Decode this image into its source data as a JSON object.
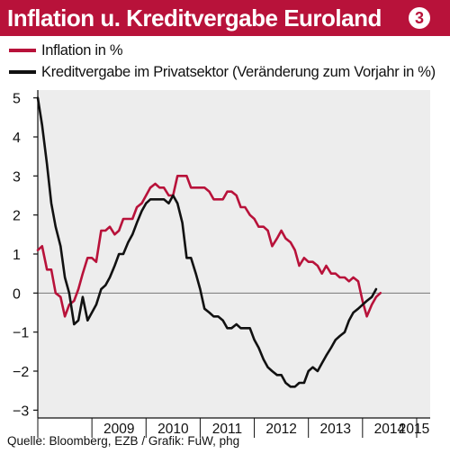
{
  "header": {
    "title": "Inflation u. Kreditvergabe Euroland",
    "badge": "3"
  },
  "legend": [
    {
      "label": "Inflation in %",
      "color": "#b8123a"
    },
    {
      "label": "Kreditvergabe im Privatsektor (Veränderung zum Vorjahr in %)",
      "color": "#111111"
    }
  ],
  "source": "Quelle: Bloomberg, EZB / Grafik: FuW, phg",
  "chart_data": {
    "type": "line",
    "title": "Inflation u. Kreditvergabe Euroland",
    "ylim": [
      -3.2,
      5.2
    ],
    "xlim": [
      2008.0,
      2015.25
    ],
    "y_ticks": [
      5,
      4,
      3,
      2,
      1,
      0,
      -1,
      -2,
      -3
    ],
    "y_tick_labels": [
      "5",
      "4",
      "3",
      "2",
      "1",
      "0",
      "−1",
      "−2",
      "−3"
    ],
    "x_tick_labels": [
      {
        "label": "2009",
        "x": 2009
      },
      {
        "label": "2010",
        "x": 2010
      },
      {
        "label": "2011",
        "x": 2011
      },
      {
        "label": "2012",
        "x": 2012
      },
      {
        "label": "2013",
        "x": 2013
      },
      {
        "label": "2014",
        "x": 2014
      },
      {
        "label": "2015",
        "x": 2015
      }
    ],
    "grid": false,
    "legend_position": "top-left",
    "series": [
      {
        "name": "Inflation in %",
        "color": "#b8123a",
        "points": [
          [
            2008.0,
            1.1
          ],
          [
            2008.08,
            1.2
          ],
          [
            2008.17,
            0.6
          ],
          [
            2008.25,
            0.6
          ],
          [
            2008.33,
            0.0
          ],
          [
            2008.42,
            -0.1
          ],
          [
            2008.5,
            -0.6
          ],
          [
            2008.58,
            -0.3
          ],
          [
            2008.67,
            -0.2
          ],
          [
            2008.75,
            0.1
          ],
          [
            2008.83,
            0.5
          ],
          [
            2008.92,
            0.9
          ],
          [
            2009.0,
            0.9
          ],
          [
            2009.08,
            0.8
          ],
          [
            2009.17,
            1.6
          ],
          [
            2009.25,
            1.6
          ],
          [
            2009.33,
            1.7
          ],
          [
            2009.42,
            1.5
          ],
          [
            2009.5,
            1.6
          ],
          [
            2009.58,
            1.9
          ],
          [
            2009.67,
            1.9
          ],
          [
            2009.75,
            1.9
          ],
          [
            2009.83,
            2.2
          ],
          [
            2009.92,
            2.3
          ],
          [
            2010.0,
            2.5
          ],
          [
            2010.08,
            2.7
          ],
          [
            2010.17,
            2.8
          ],
          [
            2010.25,
            2.7
          ],
          [
            2010.33,
            2.7
          ],
          [
            2010.42,
            2.5
          ],
          [
            2010.5,
            2.5
          ],
          [
            2010.58,
            3.0
          ],
          [
            2010.67,
            3.0
          ],
          [
            2010.75,
            3.0
          ],
          [
            2010.83,
            2.7
          ],
          [
            2010.92,
            2.7
          ],
          [
            2011.0,
            2.7
          ],
          [
            2011.08,
            2.7
          ],
          [
            2011.17,
            2.6
          ],
          [
            2011.25,
            2.4
          ],
          [
            2011.33,
            2.4
          ],
          [
            2011.42,
            2.4
          ],
          [
            2011.5,
            2.6
          ],
          [
            2011.58,
            2.6
          ],
          [
            2011.67,
            2.5
          ],
          [
            2011.75,
            2.2
          ],
          [
            2011.83,
            2.2
          ],
          [
            2011.92,
            2.0
          ],
          [
            2012.0,
            1.9
          ],
          [
            2012.08,
            1.7
          ],
          [
            2012.17,
            1.7
          ],
          [
            2012.25,
            1.6
          ],
          [
            2012.33,
            1.2
          ],
          [
            2012.42,
            1.4
          ],
          [
            2012.5,
            1.6
          ],
          [
            2012.58,
            1.4
          ],
          [
            2012.67,
            1.3
          ],
          [
            2012.75,
            1.1
          ],
          [
            2012.83,
            0.7
          ],
          [
            2012.92,
            0.9
          ],
          [
            2013.0,
            0.8
          ],
          [
            2013.08,
            0.8
          ],
          [
            2013.17,
            0.7
          ],
          [
            2013.25,
            0.5
          ],
          [
            2013.33,
            0.7
          ],
          [
            2013.42,
            0.5
          ],
          [
            2013.5,
            0.5
          ],
          [
            2013.58,
            0.4
          ],
          [
            2013.67,
            0.4
          ],
          [
            2013.75,
            0.3
          ],
          [
            2013.83,
            0.4
          ],
          [
            2013.92,
            0.3
          ],
          [
            2014.0,
            -0.2
          ],
          [
            2014.08,
            -0.6
          ],
          [
            2014.17,
            -0.3
          ],
          [
            2014.25,
            -0.1
          ],
          [
            2014.33,
            0.0
          ]
        ]
      },
      {
        "name": "Kreditvergabe im Privatsektor (Veränderung zum Vorjahr in %)",
        "color": "#111111",
        "points": [
          [
            2008.0,
            5.0
          ],
          [
            2008.08,
            4.3
          ],
          [
            2008.17,
            3.3
          ],
          [
            2008.25,
            2.3
          ],
          [
            2008.33,
            1.7
          ],
          [
            2008.42,
            1.2
          ],
          [
            2008.5,
            0.4
          ],
          [
            2008.58,
            0.0
          ],
          [
            2008.67,
            -0.8
          ],
          [
            2008.75,
            -0.7
          ],
          [
            2008.83,
            -0.1
          ],
          [
            2008.92,
            -0.7
          ],
          [
            2009.0,
            -0.5
          ],
          [
            2009.08,
            -0.3
          ],
          [
            2009.17,
            0.1
          ],
          [
            2009.25,
            0.2
          ],
          [
            2009.33,
            0.4
          ],
          [
            2009.42,
            0.7
          ],
          [
            2009.5,
            1.0
          ],
          [
            2009.58,
            1.0
          ],
          [
            2009.67,
            1.3
          ],
          [
            2009.75,
            1.5
          ],
          [
            2009.83,
            1.8
          ],
          [
            2009.92,
            2.1
          ],
          [
            2010.0,
            2.3
          ],
          [
            2010.08,
            2.4
          ],
          [
            2010.17,
            2.4
          ],
          [
            2010.25,
            2.4
          ],
          [
            2010.33,
            2.4
          ],
          [
            2010.42,
            2.3
          ],
          [
            2010.5,
            2.5
          ],
          [
            2010.58,
            2.3
          ],
          [
            2010.67,
            1.8
          ],
          [
            2010.75,
            0.9
          ],
          [
            2010.83,
            0.9
          ],
          [
            2010.92,
            0.5
          ],
          [
            2011.0,
            0.1
          ],
          [
            2011.08,
            -0.4
          ],
          [
            2011.17,
            -0.5
          ],
          [
            2011.25,
            -0.6
          ],
          [
            2011.33,
            -0.6
          ],
          [
            2011.42,
            -0.7
          ],
          [
            2011.5,
            -0.9
          ],
          [
            2011.58,
            -0.9
          ],
          [
            2011.67,
            -0.8
          ],
          [
            2011.75,
            -0.9
          ],
          [
            2011.83,
            -0.9
          ],
          [
            2011.92,
            -0.9
          ],
          [
            2012.0,
            -1.2
          ],
          [
            2012.08,
            -1.4
          ],
          [
            2012.17,
            -1.7
          ],
          [
            2012.25,
            -1.9
          ],
          [
            2012.33,
            -2.0
          ],
          [
            2012.42,
            -2.1
          ],
          [
            2012.5,
            -2.1
          ],
          [
            2012.58,
            -2.3
          ],
          [
            2012.67,
            -2.4
          ],
          [
            2012.75,
            -2.4
          ],
          [
            2012.83,
            -2.3
          ],
          [
            2012.92,
            -2.3
          ],
          [
            2013.0,
            -2.0
          ],
          [
            2013.08,
            -1.9
          ],
          [
            2013.17,
            -2.0
          ],
          [
            2013.25,
            -1.8
          ],
          [
            2013.33,
            -1.6
          ],
          [
            2013.42,
            -1.4
          ],
          [
            2013.5,
            -1.2
          ],
          [
            2013.58,
            -1.1
          ],
          [
            2013.67,
            -1.0
          ],
          [
            2013.75,
            -0.7
          ],
          [
            2013.83,
            -0.5
          ],
          [
            2013.92,
            -0.4
          ],
          [
            2014.0,
            -0.3
          ],
          [
            2014.08,
            -0.2
          ],
          [
            2014.17,
            -0.1
          ],
          [
            2014.25,
            0.1
          ]
        ]
      }
    ]
  }
}
